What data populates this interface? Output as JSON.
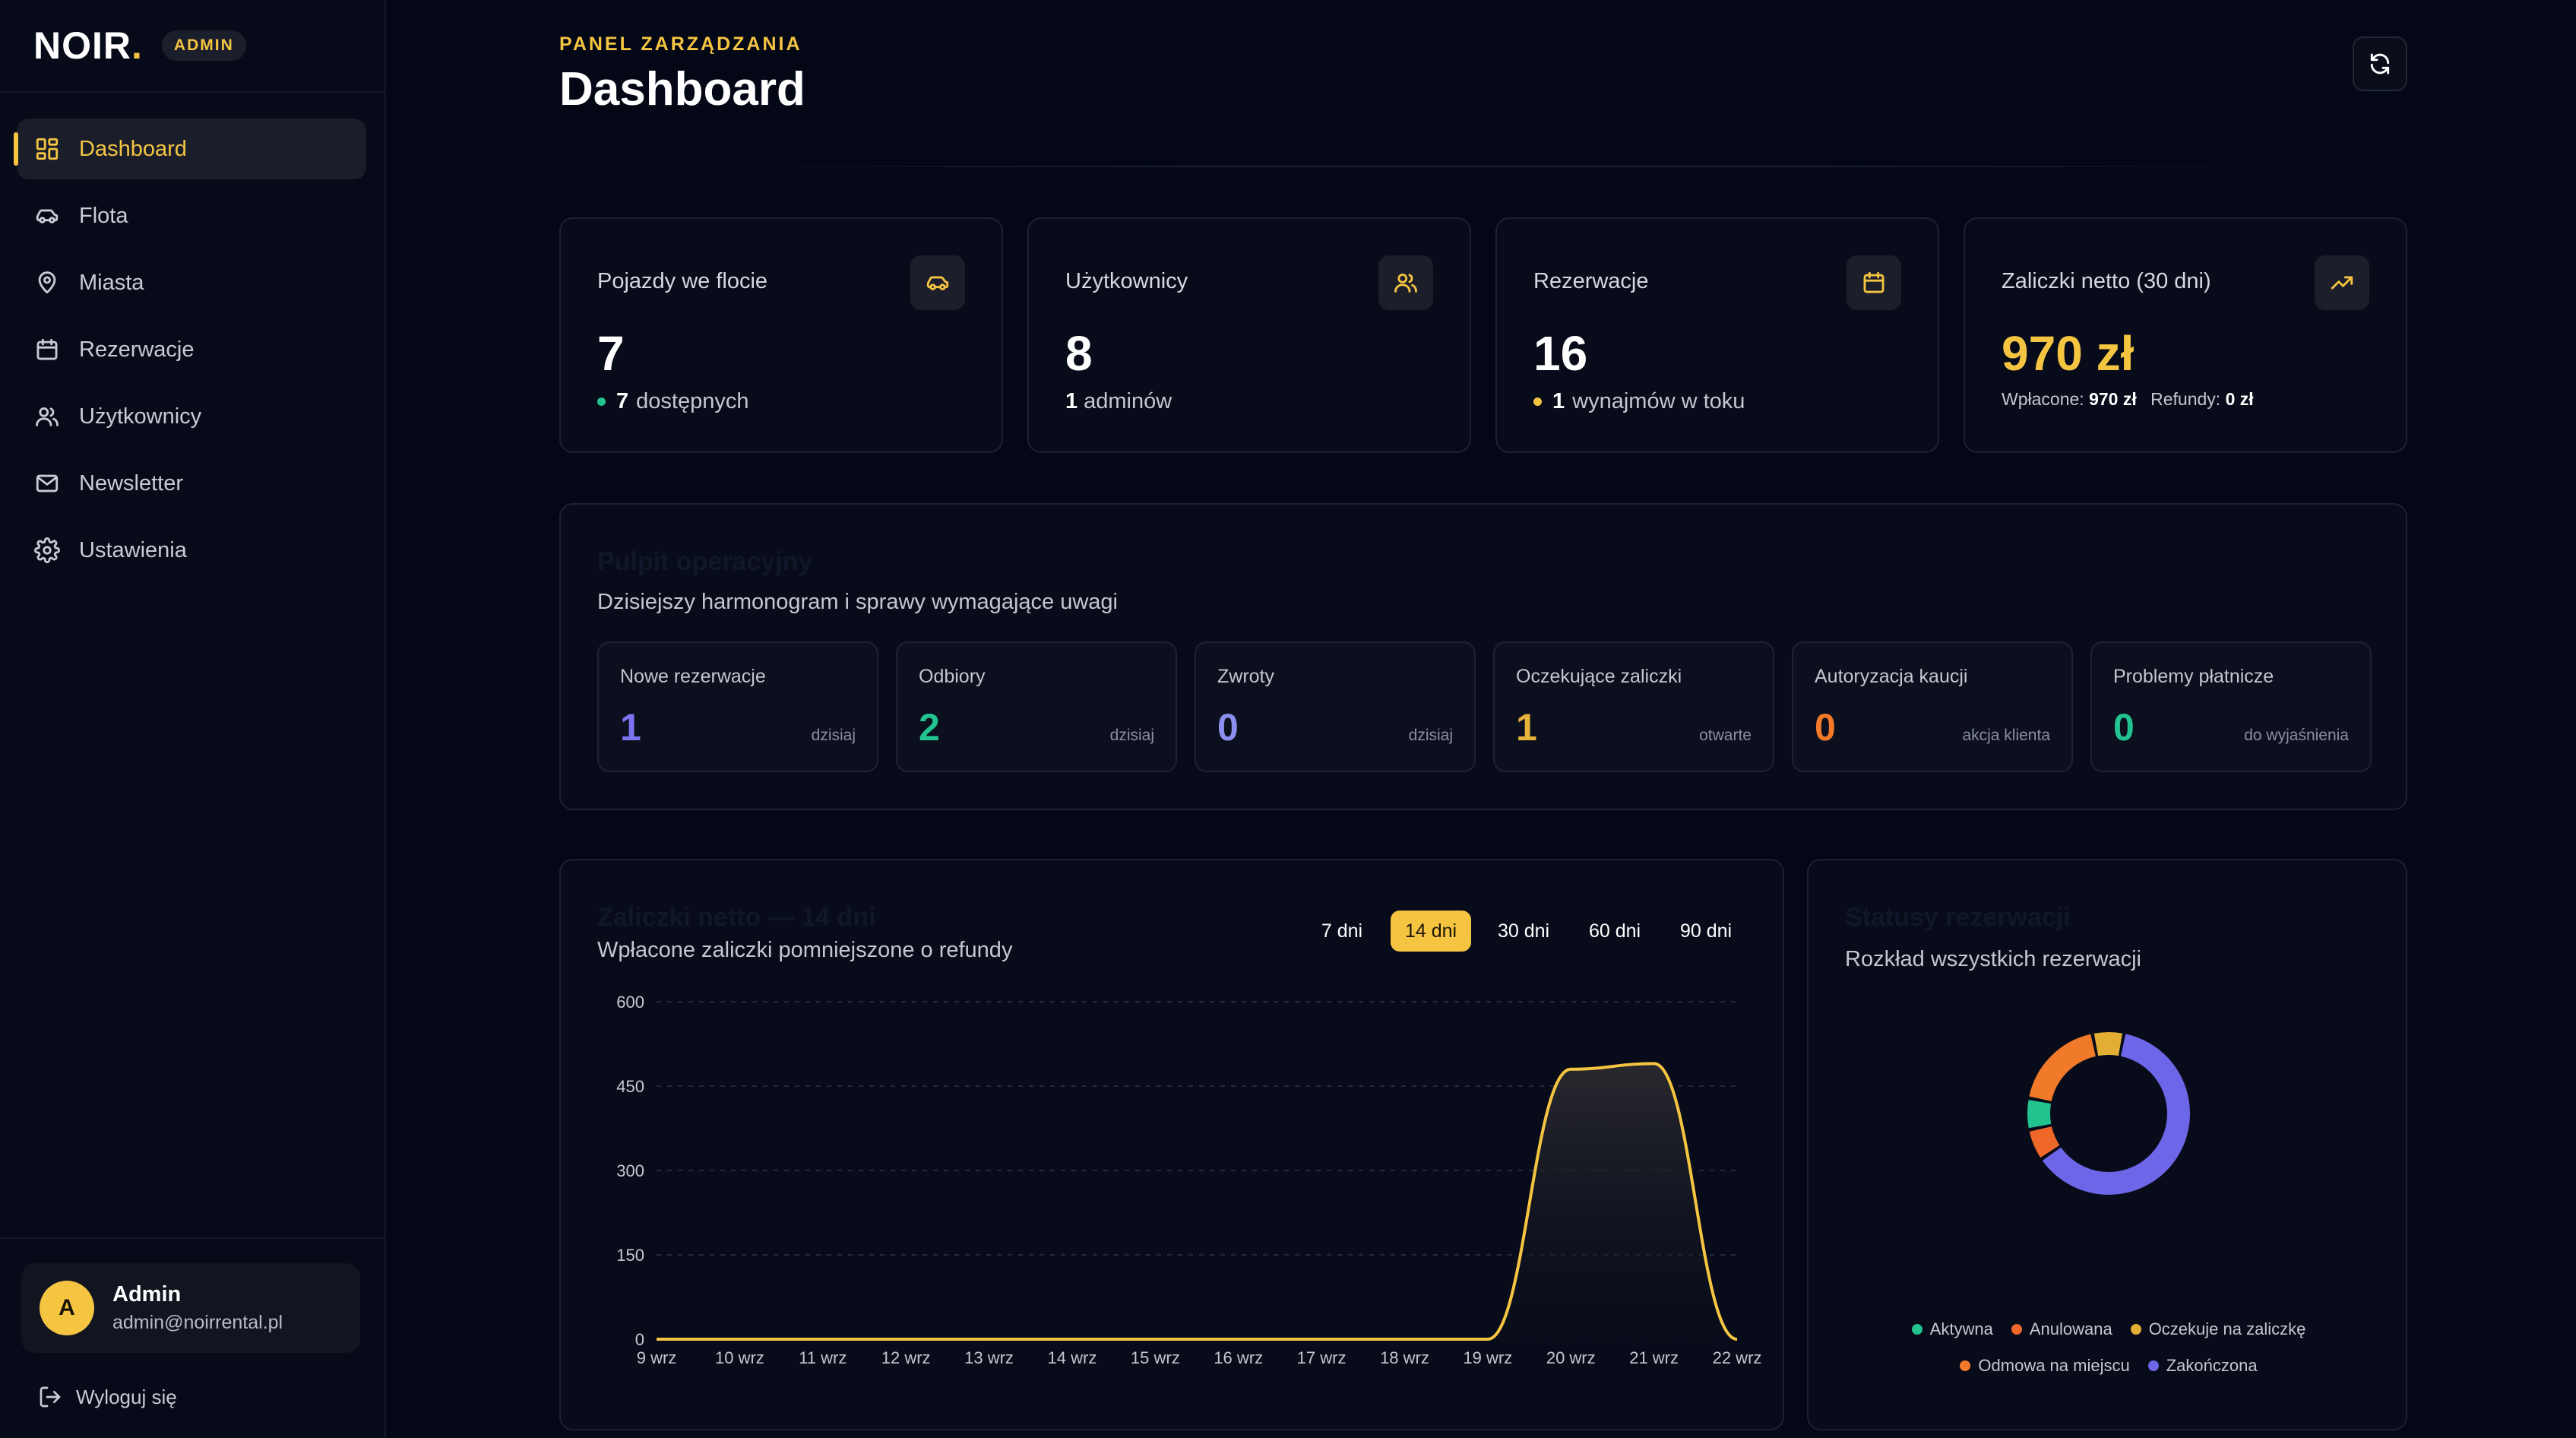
{
  "brand": {
    "name": "NOIR",
    "badge": "ADMIN"
  },
  "nav": [
    {
      "label": "Dashboard",
      "icon": "grid-icon",
      "active": true
    },
    {
      "label": "Flota",
      "icon": "car-icon",
      "active": false
    },
    {
      "label": "Miasta",
      "icon": "map-pin-icon",
      "active": false
    },
    {
      "label": "Rezerwacje",
      "icon": "calendar-icon",
      "active": false
    },
    {
      "label": "Użytkownicy",
      "icon": "users-icon",
      "active": false
    },
    {
      "label": "Newsletter",
      "icon": "mail-icon",
      "active": false
    },
    {
      "label": "Ustawienia",
      "icon": "settings-icon",
      "active": false
    }
  ],
  "user": {
    "initial": "A",
    "name": "Admin",
    "email": "admin@noirrental.pl",
    "logout_label": "Wyloguj się"
  },
  "header": {
    "eyebrow": "PANEL ZARZĄDZANIA",
    "title": "Dashboard"
  },
  "stats": [
    {
      "label": "Pojazdy we flocie",
      "value": "7",
      "sub_count": "7",
      "sub_text": "dostępnych",
      "icon": "car-icon",
      "dot_color": "#22c38e"
    },
    {
      "label": "Użytkownicy",
      "value": "8",
      "sub_count": "1",
      "sub_text": "adminów",
      "icon": "users-icon"
    },
    {
      "label": "Rezerwacje",
      "value": "16",
      "sub_count": "1",
      "sub_text": "wynajmów w toku",
      "icon": "calendar-icon",
      "dot_color": "#f5c542"
    },
    {
      "label": "Zaliczki netto (30 dni)",
      "value": "970 zł",
      "paid_label": "Wpłacone:",
      "paid_value": "970 zł",
      "refund_label": "Refundy:",
      "refund_value": "0 zł",
      "icon": "trending-up-icon"
    }
  ],
  "ops": {
    "title": "Pulpit operacyjny",
    "subtitle": "Dzisiejszy harmonogram i sprawy wymagające uwagi",
    "tiles": [
      {
        "label": "Nowe rezerwacje",
        "value": "1",
        "note": "dzisiaj",
        "color": "#7b73f0"
      },
      {
        "label": "Odbiory",
        "value": "2",
        "note": "dzisiaj",
        "color": "#22c38e"
      },
      {
        "label": "Zwroty",
        "value": "0",
        "note": "dzisiaj",
        "color": "#8b8ff0"
      },
      {
        "label": "Oczekujące zaliczki",
        "value": "1",
        "note": "otwarte",
        "color": "#e6b23a"
      },
      {
        "label": "Autoryzacja kaucji",
        "value": "0",
        "note": "akcja klienta",
        "color": "#f47a2a"
      },
      {
        "label": "Problemy płatnicze",
        "value": "0",
        "note": "do wyjaśnienia",
        "color": "#22c38e"
      }
    ]
  },
  "revenue": {
    "title": "Zaliczki netto — 14 dni",
    "subtitle": "Wpłacone zaliczki pomniejszone o refundy",
    "ranges": [
      {
        "label": "7 dni",
        "active": false
      },
      {
        "label": "14 dni",
        "active": true
      },
      {
        "label": "30 dni",
        "active": false
      },
      {
        "label": "60 dni",
        "active": false
      },
      {
        "label": "90 dni",
        "active": false
      }
    ]
  },
  "chart_data": {
    "type": "area",
    "title": "Zaliczki netto — 14 dni",
    "x": [
      "9 wrz",
      "10 wrz",
      "11 wrz",
      "12 wrz",
      "13 wrz",
      "14 wrz",
      "15 wrz",
      "16 wrz",
      "17 wrz",
      "18 wrz",
      "19 wrz",
      "20 wrz",
      "21 wrz",
      "22 wrz"
    ],
    "series": [
      {
        "values": [
          0,
          0,
          0,
          0,
          0,
          0,
          0,
          0,
          0,
          0,
          0,
          480,
          490,
          0
        ],
        "color": "#f5c542"
      }
    ],
    "y_ticks": [
      0,
      150,
      300,
      450,
      600
    ],
    "ylim": [
      0,
      600
    ],
    "grid": true
  },
  "status": {
    "title": "Statusy rezerwacji",
    "subtitle": "Rozkład wszystkich rezerwacji",
    "segments": [
      {
        "name": "Zakończona",
        "value": 10,
        "color": "#6d66e8"
      },
      {
        "name": "Anulowana",
        "value": 1,
        "color": "#f0672a"
      },
      {
        "name": "Aktywna",
        "value": 1,
        "color": "#22c38e"
      },
      {
        "name": "Odmowa na miejscu",
        "value": 3,
        "color": "#f07a2a"
      },
      {
        "name": "Oczekuje na zaliczkę",
        "value": 1,
        "color": "#e2ae34"
      }
    ],
    "legend_row1": [
      {
        "name": "Aktywna",
        "color": "#22c38e"
      },
      {
        "name": "Anulowana",
        "color": "#f0672a"
      },
      {
        "name": "Oczekuje na zaliczkę",
        "color": "#e2ae34"
      }
    ],
    "legend_row2": [
      {
        "name": "Odmowa na miejscu",
        "color": "#f07a2a"
      },
      {
        "name": "Zakończona",
        "color": "#6d66e8"
      }
    ]
  }
}
